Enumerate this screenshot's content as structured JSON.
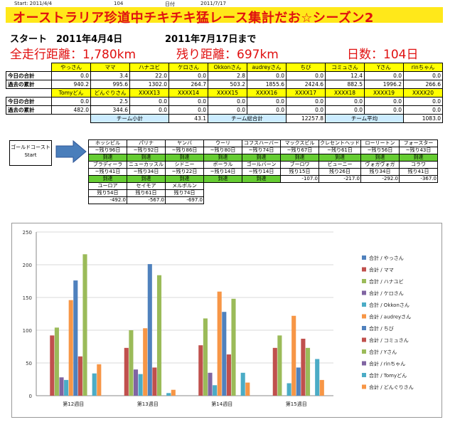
{
  "header": {
    "start_label": "Start: 2011/4/4",
    "day_count": "104",
    "date_label": "日付",
    "date_value": "2011/7/17"
  },
  "title": "オーストラリア珍道中チキチキ猛レース集計だお☆シーズン2",
  "summary": {
    "start": "スタート　2011年4月4日",
    "until": "2011年7月17日まで",
    "total_distance": "全走行距離：1,780km",
    "remaining": "残り距離：697km",
    "days": "日数：104日"
  },
  "table_rows": {
    "today": "今日の合計",
    "past": "過去の累計"
  },
  "team1": {
    "names": [
      "やっさん",
      "ママ",
      "ハナユビ",
      "ケロさん",
      "Okkonさん",
      "audreyさん",
      "ちび",
      "コミュさん",
      "Yさん",
      "rinちゃん"
    ],
    "today": [
      "0.0",
      "3.4",
      "22.0",
      "0.0",
      "2.8",
      "0.0",
      "0.0",
      "12.4",
      "0.0",
      "0.0"
    ],
    "past": [
      "940.2",
      "995.6",
      "1302.0",
      "264.7",
      "503.2",
      "1855.6",
      "2424.6",
      "882.5",
      "1996.2",
      "266.6"
    ]
  },
  "team2": {
    "names": [
      "Tomyどん",
      "どんぐりさん",
      "XXXX13",
      "XXXX14",
      "XXXX15",
      "XXXX16",
      "XXXX17",
      "XXXX18",
      "XXXX19",
      "XXXX20"
    ],
    "today": [
      "0.0",
      "2.5",
      "0.0",
      "0.0",
      "0.0",
      "0.0",
      "0.0",
      "0.0",
      "0.0",
      "0.0"
    ],
    "past": [
      "482.0",
      "344.6",
      "0.0",
      "0.0",
      "0.0",
      "0.0",
      "0.0",
      "0.0",
      "0.0",
      "0.0"
    ]
  },
  "totals": {
    "team_subtotal_label": "チーム小計",
    "team_subtotal": "43.1",
    "team_total_label": "チーム総合計",
    "team_total": "12257.8",
    "team_avg_label": "チーム平均",
    "team_avg": "1083.0"
  },
  "course": {
    "start_box": [
      "ゴールドコースト",
      "Start"
    ],
    "rows": [
      [
        [
          "ホッシビル",
          "~残り96日",
          "到達"
        ],
        [
          "パリナ",
          "~残り92日",
          "到達"
        ],
        [
          "ヤンバ",
          "~残り86日",
          "到達"
        ],
        [
          "ウーリ",
          "~残り80日",
          "到達"
        ],
        [
          "コフスハーバー",
          "~残り74日",
          "到達"
        ],
        [
          "マックスビル",
          "~残り67日",
          "到達"
        ],
        [
          "クレセントヘッド",
          "~残り61日",
          "到達"
        ],
        [
          "ローリートン",
          "~残り56日",
          "到達"
        ],
        [
          "フォースター",
          "~残り43日",
          "到達"
        ]
      ],
      [
        [
          "ブラディーラ",
          "~残り41日",
          "到達"
        ],
        [
          "ニューカッスル",
          "~残り34日",
          "到達"
        ],
        [
          "シドニー",
          "~残り22日",
          "到達"
        ],
        [
          "ボーラル",
          "~残り14日",
          "到達"
        ],
        [
          "ゴールバーン",
          "~残り14日",
          "到達"
        ],
        [
          "ブーロワ",
          "残り15日",
          "-107.0"
        ],
        [
          "ビューニー",
          "残り26日",
          "-217.0"
        ],
        [
          "ヴォガヴォガ",
          "残り34日",
          "-292.0"
        ],
        [
          "コラワ",
          "残り41日",
          "-367.0"
        ]
      ],
      [
        [
          "ユーロア",
          "残り54日",
          "-492.0"
        ],
        [
          "セイモア",
          "残り61日",
          "-567.0"
        ],
        [
          "メルボルン",
          "残り74日",
          "-697.0"
        ]
      ]
    ]
  },
  "chart_data": {
    "type": "bar",
    "categories": [
      "第12週目",
      "第13週目",
      "第14週目",
      "第15週目"
    ],
    "ylim": [
      0,
      250
    ],
    "yticks": [
      0,
      50,
      100,
      150,
      200,
      250
    ],
    "grid": true,
    "legend_position": "right",
    "series": [
      {
        "name": "合計 / やっさん",
        "color": "#4f81bd",
        "values": [
          0,
          0,
          0,
          0
        ]
      },
      {
        "name": "合計 / ママ",
        "color": "#c0504d",
        "values": [
          92,
          73,
          77,
          73
        ]
      },
      {
        "name": "合計 / ハナユビ",
        "color": "#9bbb59",
        "values": [
          104,
          100,
          118,
          92
        ]
      },
      {
        "name": "合計 / ケロさん",
        "color": "#8064a2",
        "values": [
          28,
          40,
          35,
          0
        ]
      },
      {
        "name": "合計 / Okkonさん",
        "color": "#4bacc6",
        "values": [
          24,
          33,
          16,
          19
        ]
      },
      {
        "name": "合計 / audreyさん",
        "color": "#f79646",
        "values": [
          146,
          103,
          159,
          122
        ]
      },
      {
        "name": "合計 / ちび",
        "color": "#4f81bd",
        "values": [
          176,
          201,
          128,
          43
        ]
      },
      {
        "name": "合計 / コミュさん",
        "color": "#c0504d",
        "values": [
          60,
          43,
          63,
          87
        ]
      },
      {
        "name": "合計 / Yさん",
        "color": "#9bbb59",
        "values": [
          216,
          184,
          148,
          73
        ]
      },
      {
        "name": "合計 / rinちゃん",
        "color": "#8064a2",
        "values": [
          0,
          0,
          0,
          0
        ]
      },
      {
        "name": "合計 / Tomyどん",
        "color": "#4bacc6",
        "values": [
          34,
          4,
          35,
          56
        ]
      },
      {
        "name": "合計 / どんぐりさん",
        "color": "#f79646",
        "values": [
          48,
          9,
          20,
          24
        ]
      }
    ]
  }
}
